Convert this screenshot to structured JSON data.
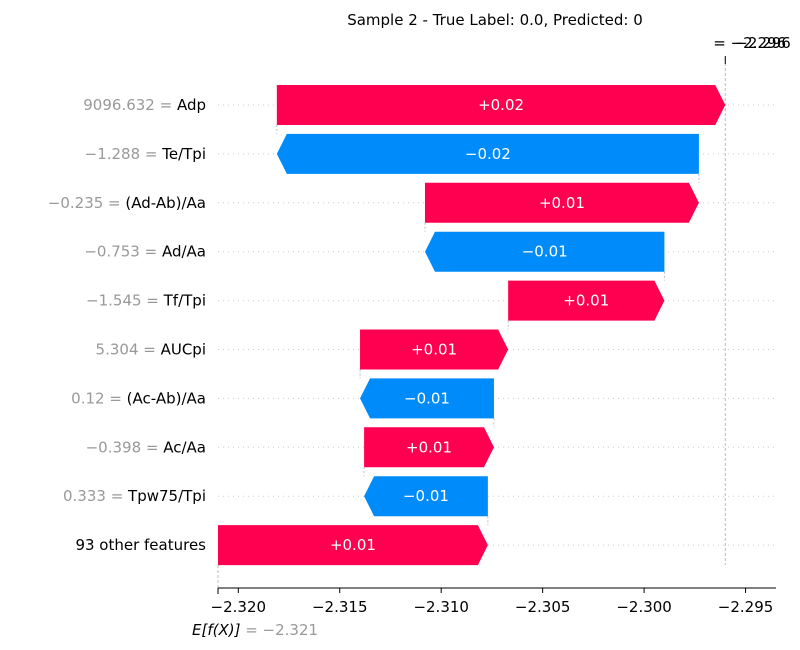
{
  "title": "Sample 2 - True Label: 0.0, Predicted: 0",
  "chart_data": {
    "type": "waterfall",
    "base_value": -2.321,
    "base_label_prefix": "E[f(X)]",
    "base_label_value": "= −2.321",
    "final_value": -2.296,
    "final_label_value": "= −2.296",
    "final_label_ghost": "−2.296",
    "xlim": [
      -2.321,
      -2.2935
    ],
    "xticks": [
      -2.32,
      -2.315,
      -2.31,
      -2.305,
      -2.3,
      -2.295
    ],
    "xtick_labels": [
      "−2.320",
      "−2.315",
      "−2.310",
      "−2.305",
      "−2.300",
      "−2.295"
    ],
    "colors": {
      "positive": "#ff0051",
      "negative": "#008bfb",
      "value_text": "#999999"
    },
    "features": [
      {
        "value": "9096.632",
        "name": "Adp",
        "label": "+0.02",
        "start": -2.3181,
        "end": -2.296
      },
      {
        "value": "−1.288",
        "name": "Te/Tpi",
        "label": "−0.02",
        "start": -2.2973,
        "end": -2.3181
      },
      {
        "value": "−0.235",
        "name": "(Ad-Ab)/Aa",
        "label": "+0.01",
        "start": -2.3108,
        "end": -2.2973
      },
      {
        "value": "−0.753",
        "name": "Ad/Aa",
        "label": "−0.01",
        "start": -2.299,
        "end": -2.3108
      },
      {
        "value": "−1.545",
        "name": "Tf/Tpi",
        "label": "+0.01",
        "start": -2.3067,
        "end": -2.299
      },
      {
        "value": "5.304",
        "name": "AUCpi",
        "label": "+0.01",
        "start": -2.314,
        "end": -2.3067
      },
      {
        "value": "0.12",
        "name": "(Ac-Ab)/Aa",
        "label": "−0.01",
        "start": -2.3074,
        "end": -2.314
      },
      {
        "value": "−0.398",
        "name": "Ac/Aa",
        "label": "+0.01",
        "start": -2.3138,
        "end": -2.3074
      },
      {
        "value": "0.333",
        "name": "Tpw75/Tpi",
        "label": "−0.01",
        "start": -2.3077,
        "end": -2.3138
      },
      {
        "value": "",
        "name": "93 other features",
        "label": "+0.01",
        "start": -2.321,
        "end": -2.3077
      }
    ]
  }
}
